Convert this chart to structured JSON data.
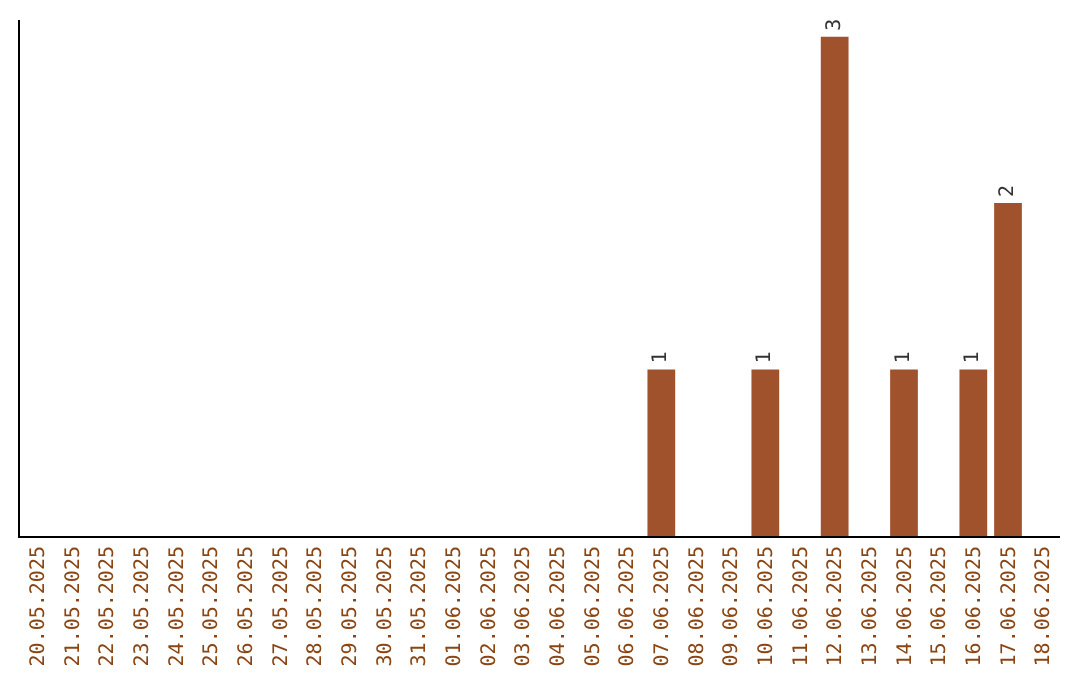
{
  "chart_data": {
    "type": "bar",
    "categories": [
      "20.05.2025",
      "21.05.2025",
      "22.05.2025",
      "23.05.2025",
      "24.05.2025",
      "25.05.2025",
      "26.05.2025",
      "27.05.2025",
      "28.05.2025",
      "29.05.2025",
      "30.05.2025",
      "31.05.2025",
      "01.06.2025",
      "02.06.2025",
      "03.06.2025",
      "04.06.2025",
      "05.06.2025",
      "06.06.2025",
      "07.06.2025",
      "08.06.2025",
      "09.06.2025",
      "10.06.2025",
      "11.06.2025",
      "12.06.2025",
      "13.06.2025",
      "14.06.2025",
      "15.06.2025",
      "16.06.2025",
      "17.06.2025",
      "18.06.2025"
    ],
    "values": [
      null,
      null,
      null,
      null,
      null,
      null,
      null,
      null,
      null,
      null,
      null,
      null,
      null,
      null,
      null,
      null,
      null,
      null,
      1,
      null,
      null,
      1,
      null,
      3,
      null,
      1,
      null,
      1,
      2,
      null
    ],
    "value_labels": [
      null,
      null,
      null,
      null,
      null,
      null,
      null,
      null,
      null,
      null,
      null,
      null,
      null,
      null,
      null,
      null,
      null,
      null,
      "1",
      null,
      null,
      "1",
      null,
      "3",
      null,
      "1",
      null,
      "1",
      "2",
      null
    ],
    "color": "#a0522d",
    "ylim": [
      0,
      3.1
    ],
    "tick_labels": "x",
    "grid": false,
    "legend": false
  }
}
